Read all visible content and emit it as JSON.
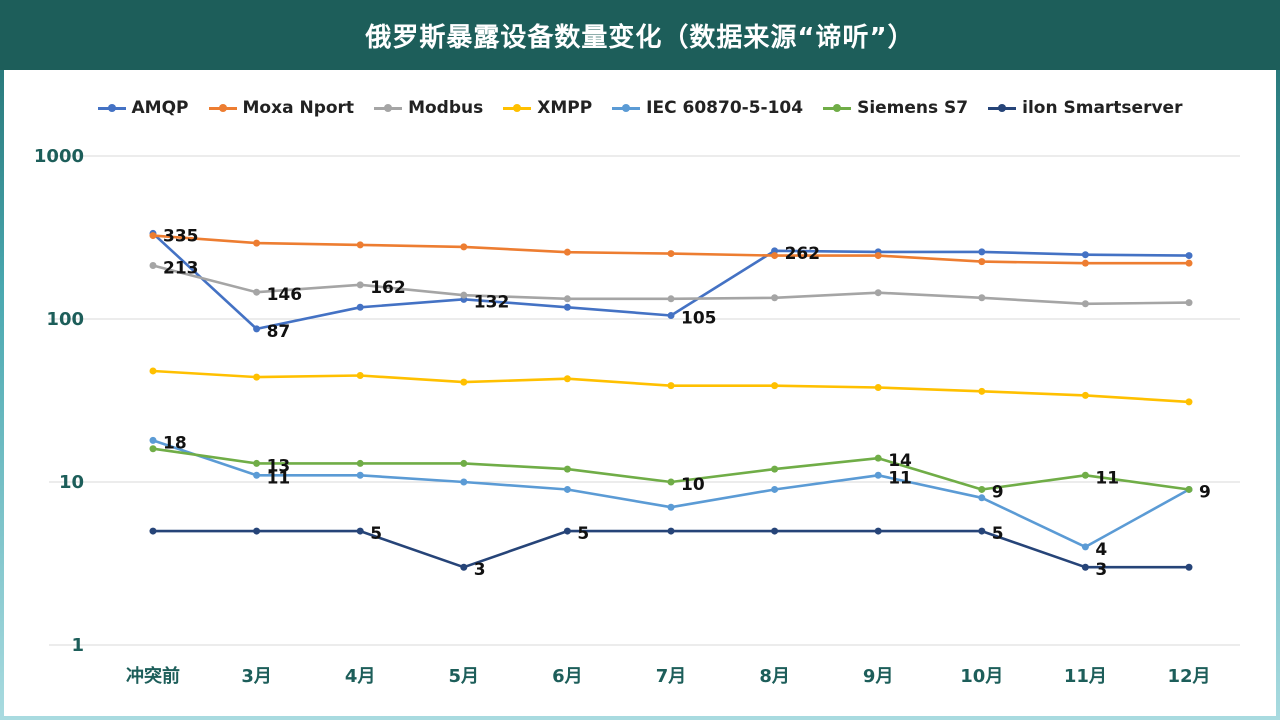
{
  "title": "俄罗斯暴露设备数量变化（数据来源“谛听”）",
  "chart_data": {
    "type": "line",
    "yscale": "log",
    "ylim": [
      1,
      1000
    ],
    "yticks": [
      1,
      10,
      100,
      1000
    ],
    "categories": [
      "冲突前",
      "3月",
      "4月",
      "5月",
      "6月",
      "7月",
      "8月",
      "9月",
      "10月",
      "11月",
      "12月"
    ],
    "series": [
      {
        "name": "AMQP",
        "color": "#4472c4",
        "values": [
          335,
          87,
          118,
          132,
          118,
          105,
          262,
          258,
          258,
          248,
          245
        ]
      },
      {
        "name": "Moxa Nport",
        "color": "#ed7d31",
        "values": [
          325,
          292,
          285,
          277,
          257,
          252,
          245,
          245,
          225,
          220,
          220
        ]
      },
      {
        "name": "Modbus",
        "color": "#a5a5a5",
        "values": [
          213,
          146,
          162,
          140,
          133,
          133,
          135,
          145,
          135,
          124,
          126
        ]
      },
      {
        "name": "XMPP",
        "color": "#ffc000",
        "values": [
          48,
          44,
          45,
          41,
          43,
          39,
          39,
          38,
          36,
          34,
          31
        ]
      },
      {
        "name": "IEC 60870-5-104",
        "color": "#5b9bd5",
        "values": [
          18,
          11,
          11,
          10,
          9,
          7,
          9,
          11,
          8,
          4,
          9
        ]
      },
      {
        "name": "Siemens S7",
        "color": "#70ad47",
        "values": [
          16,
          13,
          13,
          13,
          12,
          10,
          12,
          14,
          9,
          11,
          9
        ]
      },
      {
        "name": "ilon Smartserver",
        "color": "#264478",
        "values": [
          5,
          5,
          5,
          3,
          5,
          5,
          5,
          5,
          5,
          3,
          3
        ]
      }
    ],
    "data_labels": [
      {
        "series": 0,
        "index": 0,
        "text": "335"
      },
      {
        "series": 0,
        "index": 1,
        "text": "87"
      },
      {
        "series": 0,
        "index": 3,
        "text": "132"
      },
      {
        "series": 0,
        "index": 5,
        "text": "105"
      },
      {
        "series": 0,
        "index": 6,
        "text": "262"
      },
      {
        "series": 2,
        "index": 0,
        "text": "213"
      },
      {
        "series": 2,
        "index": 1,
        "text": "146"
      },
      {
        "series": 2,
        "index": 2,
        "text": "162"
      },
      {
        "series": 4,
        "index": 0,
        "text": "18"
      },
      {
        "series": 4,
        "index": 1,
        "text": "11"
      },
      {
        "series": 4,
        "index": 7,
        "text": "11"
      },
      {
        "series": 4,
        "index": 9,
        "text": "4"
      },
      {
        "series": 4,
        "index": 10,
        "text": "9"
      },
      {
        "series": 5,
        "index": 1,
        "text": "13"
      },
      {
        "series": 5,
        "index": 5,
        "text": "10"
      },
      {
        "series": 5,
        "index": 7,
        "text": "14"
      },
      {
        "series": 5,
        "index": 8,
        "text": "9"
      },
      {
        "series": 5,
        "index": 9,
        "text": "11"
      },
      {
        "series": 6,
        "index": 2,
        "text": "5"
      },
      {
        "series": 6,
        "index": 3,
        "text": "3"
      },
      {
        "series": 6,
        "index": 4,
        "text": "5"
      },
      {
        "series": 6,
        "index": 8,
        "text": "5"
      },
      {
        "series": 6,
        "index": 9,
        "text": "3"
      }
    ]
  }
}
